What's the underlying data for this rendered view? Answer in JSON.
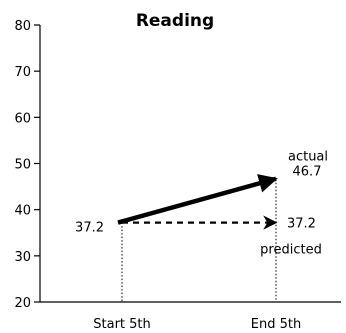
{
  "chart_data": {
    "type": "line",
    "title": "Reading",
    "x": [
      "Start 5th",
      "End 5th"
    ],
    "ylim": [
      20,
      80
    ],
    "yticks": [
      20,
      30,
      40,
      50,
      60,
      70,
      80
    ],
    "grid": false,
    "series": [
      {
        "name": "actual",
        "values": [
          37.2,
          46.7
        ],
        "style": "solid",
        "color": "#000000"
      },
      {
        "name": "predicted",
        "values": [
          37.2,
          37.2
        ],
        "style": "dashed",
        "color": "#000000"
      }
    ],
    "annotations": {
      "start_value": "37.2",
      "actual_label": "actual",
      "actual_value": "46.7",
      "predicted_value": "37.2",
      "predicted_label": "predicted"
    }
  }
}
